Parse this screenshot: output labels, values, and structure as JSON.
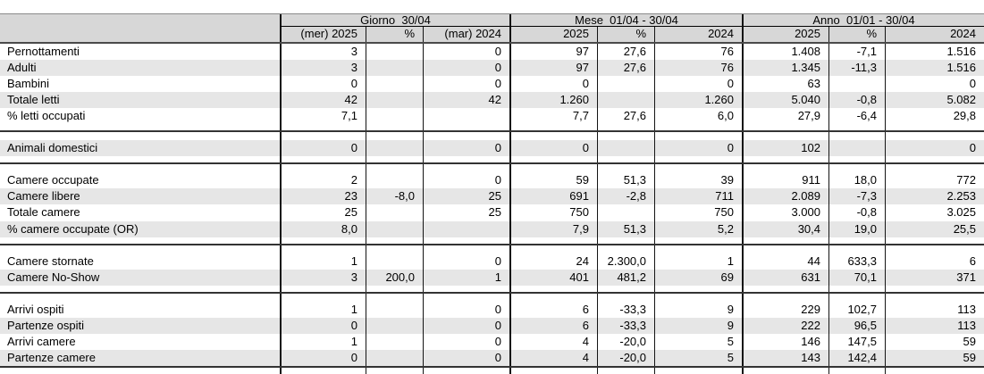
{
  "colors": {
    "header_bg": "#d7d7d7",
    "stripe_bg": "#e6e6e6",
    "border": "#141414",
    "section_line": "#333333"
  },
  "table": {
    "groups": [
      {
        "label": "Giorno  30/04"
      },
      {
        "label": "Mese  01/04 - 30/04"
      },
      {
        "label": "Anno  01/01 - 30/04"
      }
    ],
    "subheaders": [
      "(mer) 2025",
      "%",
      "(mar) 2024",
      "2025",
      "%",
      "2024",
      "2025",
      "%",
      "2024"
    ],
    "sections": [
      {
        "rows": [
          {
            "label": "Pernottamenti",
            "values": [
              "3",
              "",
              "0",
              "97",
              "27,6",
              "76",
              "1.408",
              "-7,1",
              "1.516"
            ]
          },
          {
            "label": "Adulti",
            "values": [
              "3",
              "",
              "0",
              "97",
              "27,6",
              "76",
              "1.345",
              "-11,3",
              "1.516"
            ]
          },
          {
            "label": "Bambini",
            "values": [
              "0",
              "",
              "0",
              "0",
              "",
              "0",
              "63",
              "",
              "0"
            ]
          },
          {
            "label": "Totale letti",
            "values": [
              "42",
              "",
              "42",
              "1.260",
              "",
              "1.260",
              "5.040",
              "-0,8",
              "5.082"
            ]
          },
          {
            "label": "% letti occupati",
            "values": [
              "7,1",
              "",
              "",
              "7,7",
              "27,6",
              "6,0",
              "27,9",
              "-6,4",
              "29,8"
            ]
          }
        ]
      },
      {
        "rows": [
          {
            "label": "Animali domestici",
            "values": [
              "0",
              "",
              "0",
              "0",
              "",
              "0",
              "102",
              "",
              "0"
            ]
          }
        ]
      },
      {
        "rows": [
          {
            "label": "Camere occupate",
            "values": [
              "2",
              "",
              "0",
              "59",
              "51,3",
              "39",
              "911",
              "18,0",
              "772"
            ]
          },
          {
            "label": "Camere libere",
            "values": [
              "23",
              "-8,0",
              "25",
              "691",
              "-2,8",
              "711",
              "2.089",
              "-7,3",
              "2.253"
            ]
          },
          {
            "label": "Totale camere",
            "values": [
              "25",
              "",
              "25",
              "750",
              "",
              "750",
              "3.000",
              "-0,8",
              "3.025"
            ]
          },
          {
            "label": "% camere occupate (OR)",
            "values": [
              "8,0",
              "",
              "",
              "7,9",
              "51,3",
              "5,2",
              "30,4",
              "19,0",
              "25,5"
            ]
          }
        ]
      },
      {
        "rows": [
          {
            "label": "Camere stornate",
            "values": [
              "1",
              "",
              "0",
              "24",
              "2.300,0",
              "1",
              "44",
              "633,3",
              "6"
            ]
          },
          {
            "label": "Camere No-Show",
            "values": [
              "3",
              "200,0",
              "1",
              "401",
              "481,2",
              "69",
              "631",
              "70,1",
              "371"
            ]
          }
        ]
      },
      {
        "rows": [
          {
            "label": "Arrivi ospiti",
            "values": [
              "1",
              "",
              "0",
              "6",
              "-33,3",
              "9",
              "229",
              "102,7",
              "113"
            ]
          },
          {
            "label": "Partenze ospiti",
            "values": [
              "0",
              "",
              "0",
              "6",
              "-33,3",
              "9",
              "222",
              "96,5",
              "113"
            ]
          },
          {
            "label": "Arrivi camere",
            "values": [
              "1",
              "",
              "0",
              "4",
              "-20,0",
              "5",
              "146",
              "147,5",
              "59"
            ]
          },
          {
            "label": "Partenze camere",
            "values": [
              "0",
              "",
              "0",
              "4",
              "-20,0",
              "5",
              "143",
              "142,4",
              "59"
            ]
          }
        ]
      }
    ]
  }
}
